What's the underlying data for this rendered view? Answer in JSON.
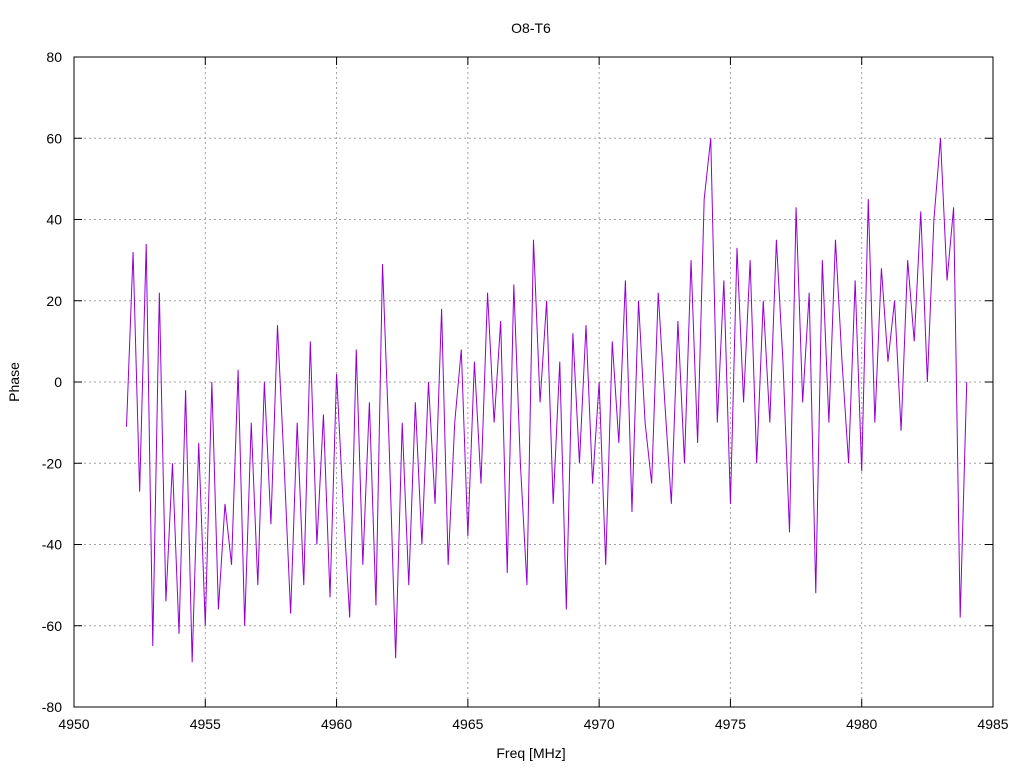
{
  "chart_data": {
    "type": "line",
    "title": "O8-T6",
    "xlabel": "Freq [MHz]",
    "ylabel": "Phase",
    "x": [
      4952,
      4952.25,
      4952.5,
      4952.75,
      4953,
      4953.25,
      4953.5,
      4953.75,
      4954,
      4954.25,
      4954.5,
      4954.75,
      4955,
      4955.25,
      4955.5,
      4955.75,
      4956,
      4956.25,
      4956.5,
      4956.75,
      4957,
      4957.25,
      4957.5,
      4957.75,
      4958,
      4958.25,
      4958.5,
      4958.75,
      4959,
      4959.25,
      4959.5,
      4959.75,
      4960,
      4960.25,
      4960.5,
      4960.75,
      4961,
      4961.25,
      4961.5,
      4961.75,
      4962,
      4962.25,
      4962.5,
      4962.75,
      4963,
      4963.25,
      4963.5,
      4963.75,
      4964,
      4964.25,
      4964.5,
      4964.75,
      4965,
      4965.25,
      4965.5,
      4965.75,
      4966,
      4966.25,
      4966.5,
      4966.75,
      4967,
      4967.25,
      4967.5,
      4967.75,
      4968,
      4968.25,
      4968.5,
      4968.75,
      4969,
      4969.25,
      4969.5,
      4969.75,
      4970,
      4970.25,
      4970.5,
      4970.75,
      4971,
      4971.25,
      4971.5,
      4971.75,
      4972,
      4972.25,
      4972.5,
      4972.75,
      4973,
      4973.25,
      4973.5,
      4973.75,
      4974,
      4974.25,
      4974.5,
      4974.75,
      4975,
      4975.25,
      4975.5,
      4975.75,
      4976,
      4976.25,
      4976.5,
      4976.75,
      4977,
      4977.25,
      4977.5,
      4977.75,
      4978,
      4978.25,
      4978.5,
      4978.75,
      4979,
      4979.25,
      4979.5,
      4979.75,
      4980,
      4980.25,
      4980.5,
      4980.75,
      4981,
      4981.25,
      4981.5,
      4981.75,
      4982,
      4982.25,
      4982.5,
      4982.75,
      4983,
      4983.25,
      4983.5,
      4983.75,
      4984
    ],
    "series": [
      {
        "color": "#9400d3",
        "values": [
          -11,
          32,
          -27,
          34,
          -65,
          22,
          -54,
          -20,
          -62,
          -2,
          -69,
          -15,
          -60,
          0,
          -56,
          -30,
          -45,
          3,
          -60,
          -10,
          -50,
          0,
          -35,
          14,
          -20,
          -57,
          -10,
          -50,
          10,
          -40,
          -8,
          -53,
          2,
          -30,
          -58,
          8,
          -45,
          -5,
          -55,
          29,
          -15,
          -68,
          -10,
          -50,
          -5,
          -40,
          0,
          -30,
          18,
          -45,
          -10,
          8,
          -38,
          5,
          -25,
          22,
          -10,
          15,
          -47,
          24,
          -20,
          -50,
          35,
          -5,
          20,
          -30,
          5,
          -56,
          12,
          -20,
          14,
          -25,
          0,
          -45,
          10,
          -15,
          25,
          -32,
          20,
          -10,
          -25,
          22,
          -5,
          -30,
          15,
          -20,
          30,
          -15,
          45,
          60,
          -10,
          25,
          -30,
          33,
          -5,
          30,
          -20,
          20,
          -10,
          35,
          5,
          -37,
          43,
          -5,
          22,
          -52,
          30,
          -10,
          35,
          5,
          -20,
          25,
          -22,
          45,
          -10,
          28,
          5,
          20,
          -12,
          30,
          10,
          42,
          0,
          40,
          60,
          25,
          43,
          -58,
          0
        ]
      }
    ],
    "xlim": [
      4950,
      4985
    ],
    "xticks": [
      4950,
      4955,
      4960,
      4965,
      4970,
      4975,
      4980,
      4985
    ],
    "ylim": [
      -80,
      80
    ],
    "yticks": [
      -80,
      -60,
      -40,
      -20,
      0,
      20,
      40,
      60,
      80
    ],
    "grid": true
  }
}
